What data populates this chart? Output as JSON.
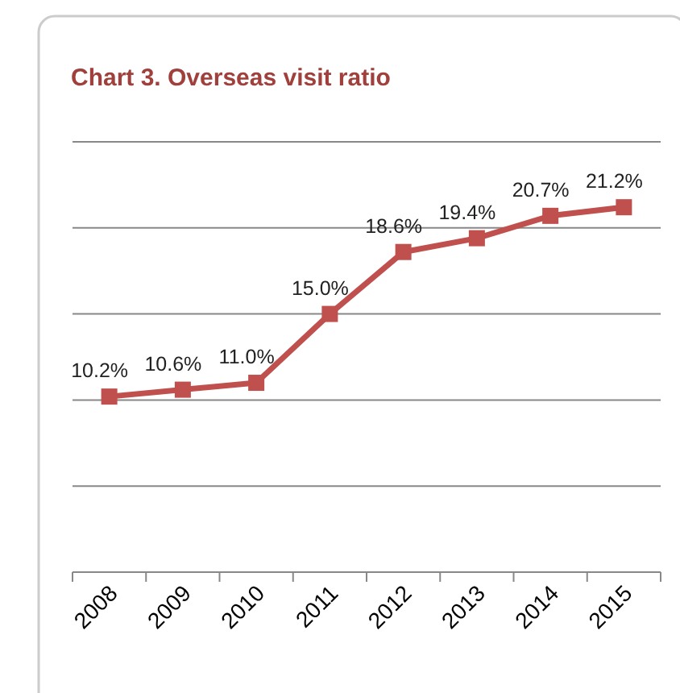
{
  "chart_data": {
    "type": "line",
    "title": "Chart 3. Overseas visit ratio",
    "categories": [
      "2008",
      "2009",
      "2010",
      "2011",
      "2012",
      "2013",
      "2014",
      "2015"
    ],
    "series": [
      {
        "color": "#c0504d",
        "values": [
          10.2,
          10.6,
          11.0,
          15.0,
          18.6,
          19.4,
          20.7,
          21.2
        ],
        "value_labels": [
          "10.2%",
          "10.6%",
          "11.0%",
          "15.0%",
          "18.6%",
          "19.4%",
          "20.7%",
          "21.2%"
        ]
      }
    ],
    "ylim": [
      0,
      25
    ],
    "yticks": [
      {
        "value": 0,
        "label": null
      },
      {
        "value": 5,
        "label": null
      },
      {
        "value": 10,
        "label": null
      },
      {
        "value": 15,
        "label": null
      },
      {
        "value": 20,
        "label": null
      },
      {
        "value": 25,
        "label": null
      }
    ],
    "grid": "y",
    "tick_labels": "x",
    "marker": "square",
    "line_style": "solid"
  }
}
